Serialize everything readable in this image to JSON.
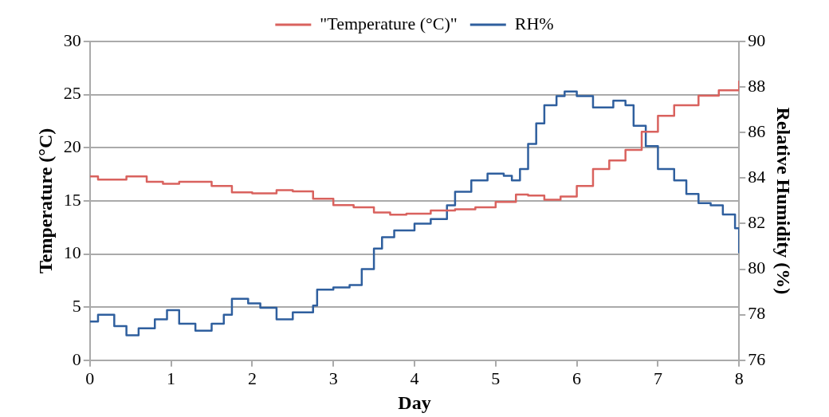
{
  "chart_data": {
    "type": "step",
    "xlabel": "Day",
    "ylabel": "Temperature (°C)",
    "y2label": "Relative Humidity (%)",
    "xlim": [
      0,
      8
    ],
    "xticks": [
      0,
      1,
      2,
      3,
      4,
      5,
      6,
      7,
      8
    ],
    "ylim": [
      0,
      30
    ],
    "yticks": [
      0,
      5,
      10,
      15,
      20,
      25,
      30
    ],
    "y2lim": [
      76,
      90
    ],
    "y2ticks": [
      76,
      78,
      80,
      82,
      84,
      86,
      88,
      90
    ],
    "grid": "y",
    "legend": "top",
    "line_style": "solid",
    "marker": "none",
    "series": [
      {
        "name": "\"Temperature (°C)\"",
        "color": "#d9625e",
        "x": [
          0,
          0.1,
          0.25,
          0.45,
          0.7,
          0.9,
          1.1,
          1.3,
          1.5,
          1.75,
          2.0,
          2.3,
          2.5,
          2.75,
          3.0,
          3.25,
          3.5,
          3.7,
          3.9,
          4.2,
          4.5,
          4.75,
          5.0,
          5.25,
          5.4,
          5.6,
          5.8,
          6.0,
          6.2,
          6.4,
          6.6,
          6.8,
          7.0,
          7.2,
          7.5,
          7.75,
          8.0
        ],
        "values": [
          17.3,
          17.0,
          17.0,
          17.3,
          16.8,
          16.6,
          16.8,
          16.8,
          16.4,
          15.8,
          15.7,
          16.0,
          15.9,
          15.2,
          14.6,
          14.4,
          13.9,
          13.7,
          13.8,
          14.1,
          14.2,
          14.4,
          14.9,
          15.6,
          15.5,
          15.1,
          15.4,
          16.4,
          18.0,
          18.8,
          19.8,
          21.5,
          23.0,
          24.0,
          24.9,
          25.4,
          26.3
        ]
      },
      {
        "name": "RH%",
        "color": "#2f5f9e",
        "axis": "y2",
        "x": [
          0,
          0.1,
          0.3,
          0.45,
          0.6,
          0.8,
          0.95,
          1.1,
          1.3,
          1.5,
          1.65,
          1.75,
          1.95,
          2.1,
          2.3,
          2.5,
          2.75,
          2.8,
          3.0,
          3.2,
          3.35,
          3.5,
          3.6,
          3.75,
          4.0,
          4.2,
          4.4,
          4.5,
          4.7,
          4.9,
          5.1,
          5.2,
          5.3,
          5.4,
          5.5,
          5.6,
          5.75,
          5.85,
          6.0,
          6.2,
          6.3,
          6.45,
          6.6,
          6.7,
          6.85,
          7.0,
          7.2,
          7.35,
          7.5,
          7.65,
          7.8,
          7.95,
          8.0
        ],
        "values": [
          77.7,
          78.0,
          77.5,
          77.1,
          77.4,
          77.8,
          78.2,
          77.6,
          77.3,
          77.6,
          78.0,
          78.7,
          78.5,
          78.3,
          77.8,
          78.1,
          78.4,
          79.1,
          79.2,
          79.3,
          80.0,
          80.9,
          81.4,
          81.7,
          82.0,
          82.2,
          82.8,
          83.4,
          83.9,
          84.2,
          84.1,
          83.9,
          84.4,
          85.5,
          86.4,
          87.2,
          87.6,
          87.8,
          87.6,
          87.1,
          87.1,
          87.4,
          87.2,
          86.3,
          85.4,
          84.4,
          83.9,
          83.3,
          82.9,
          82.8,
          82.4,
          81.8,
          80.7
        ]
      }
    ]
  }
}
